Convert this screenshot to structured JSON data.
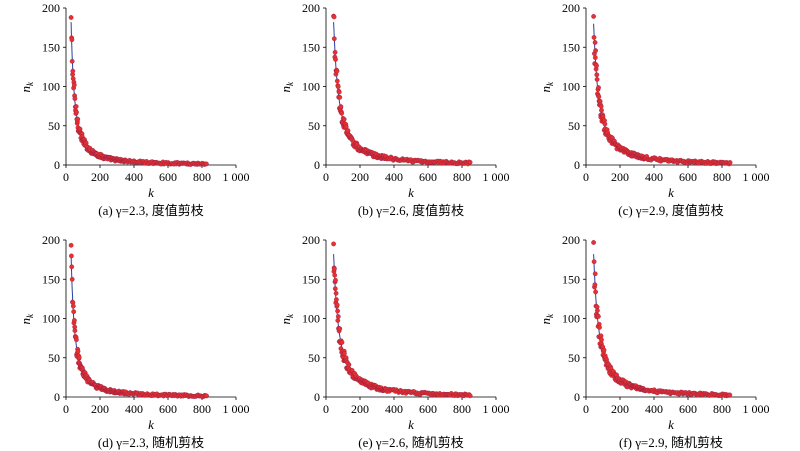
{
  "chart_data": [
    {
      "type": "scatter",
      "caption": "(a) γ=2.3, 度值剪枝",
      "xlabel": "k",
      "ylabel": "n_k",
      "xlim": [
        0,
        1000
      ],
      "ylim": [
        0,
        200
      ],
      "x_ticks": [
        "0",
        "200",
        "400",
        "600",
        "800",
        "1 000"
      ],
      "y_ticks": [
        "0",
        "50",
        "100",
        "150",
        "200"
      ],
      "k_min": 30,
      "peak": 182,
      "k_max": 830,
      "colors": {
        "points": "#e8312f",
        "line": "#2b3fa0"
      }
    },
    {
      "type": "scatter",
      "caption": "(b) γ=2.6, 度值剪枝",
      "xlabel": "k",
      "ylabel": "n_k",
      "xlim": [
        0,
        1000
      ],
      "ylim": [
        0,
        200
      ],
      "x_ticks": [
        "0",
        "200",
        "400",
        "600",
        "800",
        "1 000"
      ],
      "y_ticks": [
        "0",
        "50",
        "100",
        "150",
        "200"
      ],
      "k_min": 45,
      "peak": 182,
      "k_max": 850,
      "colors": {
        "points": "#e8312f",
        "line": "#2b3fa0"
      }
    },
    {
      "type": "scatter",
      "caption": "(c) γ=2.9, 度值剪枝",
      "xlabel": "k",
      "ylabel": "n_k",
      "xlim": [
        0,
        1000
      ],
      "ylim": [
        0,
        200
      ],
      "x_ticks": [
        "0",
        "200",
        "400",
        "600",
        "800",
        "1 000"
      ],
      "y_ticks": [
        "0",
        "50",
        "100",
        "150",
        "200"
      ],
      "k_min": 45,
      "peak": 180,
      "k_max": 850,
      "colors": {
        "points": "#e8312f",
        "line": "#2b3fa0"
      }
    },
    {
      "type": "scatter",
      "caption": "(d) γ=2.3, 随机剪枝",
      "xlabel": "k",
      "ylabel": "n_k",
      "xlim": [
        0,
        1000
      ],
      "ylim": [
        0,
        200
      ],
      "x_ticks": [
        "0",
        "200",
        "400",
        "600",
        "800",
        "1 000"
      ],
      "y_ticks": [
        "0",
        "50",
        "100",
        "150",
        "200"
      ],
      "k_min": 30,
      "peak": 182,
      "k_max": 830,
      "colors": {
        "points": "#e8312f",
        "line": "#2b3fa0"
      }
    },
    {
      "type": "scatter",
      "caption": "(e) γ=2.6, 随机剪枝",
      "xlabel": "k",
      "ylabel": "n_k",
      "xlim": [
        0,
        1000
      ],
      "ylim": [
        0,
        200
      ],
      "x_ticks": [
        "0",
        "200",
        "400",
        "600",
        "800",
        "1 000"
      ],
      "y_ticks": [
        "0",
        "50",
        "100",
        "150",
        "200"
      ],
      "k_min": 45,
      "peak": 182,
      "k_max": 850,
      "colors": {
        "points": "#e8312f",
        "line": "#2b3fa0"
      }
    },
    {
      "type": "scatter",
      "caption": "(f) γ=2.9, 随机剪枝",
      "xlabel": "k",
      "ylabel": "n_k",
      "xlim": [
        0,
        1000
      ],
      "ylim": [
        0,
        200
      ],
      "x_ticks": [
        "0",
        "200",
        "400",
        "600",
        "800",
        "1 000"
      ],
      "y_ticks": [
        "0",
        "50",
        "100",
        "150",
        "200"
      ],
      "k_min": 45,
      "peak": 182,
      "k_max": 850,
      "colors": {
        "points": "#e8312f",
        "line": "#2b3fa0"
      }
    }
  ]
}
